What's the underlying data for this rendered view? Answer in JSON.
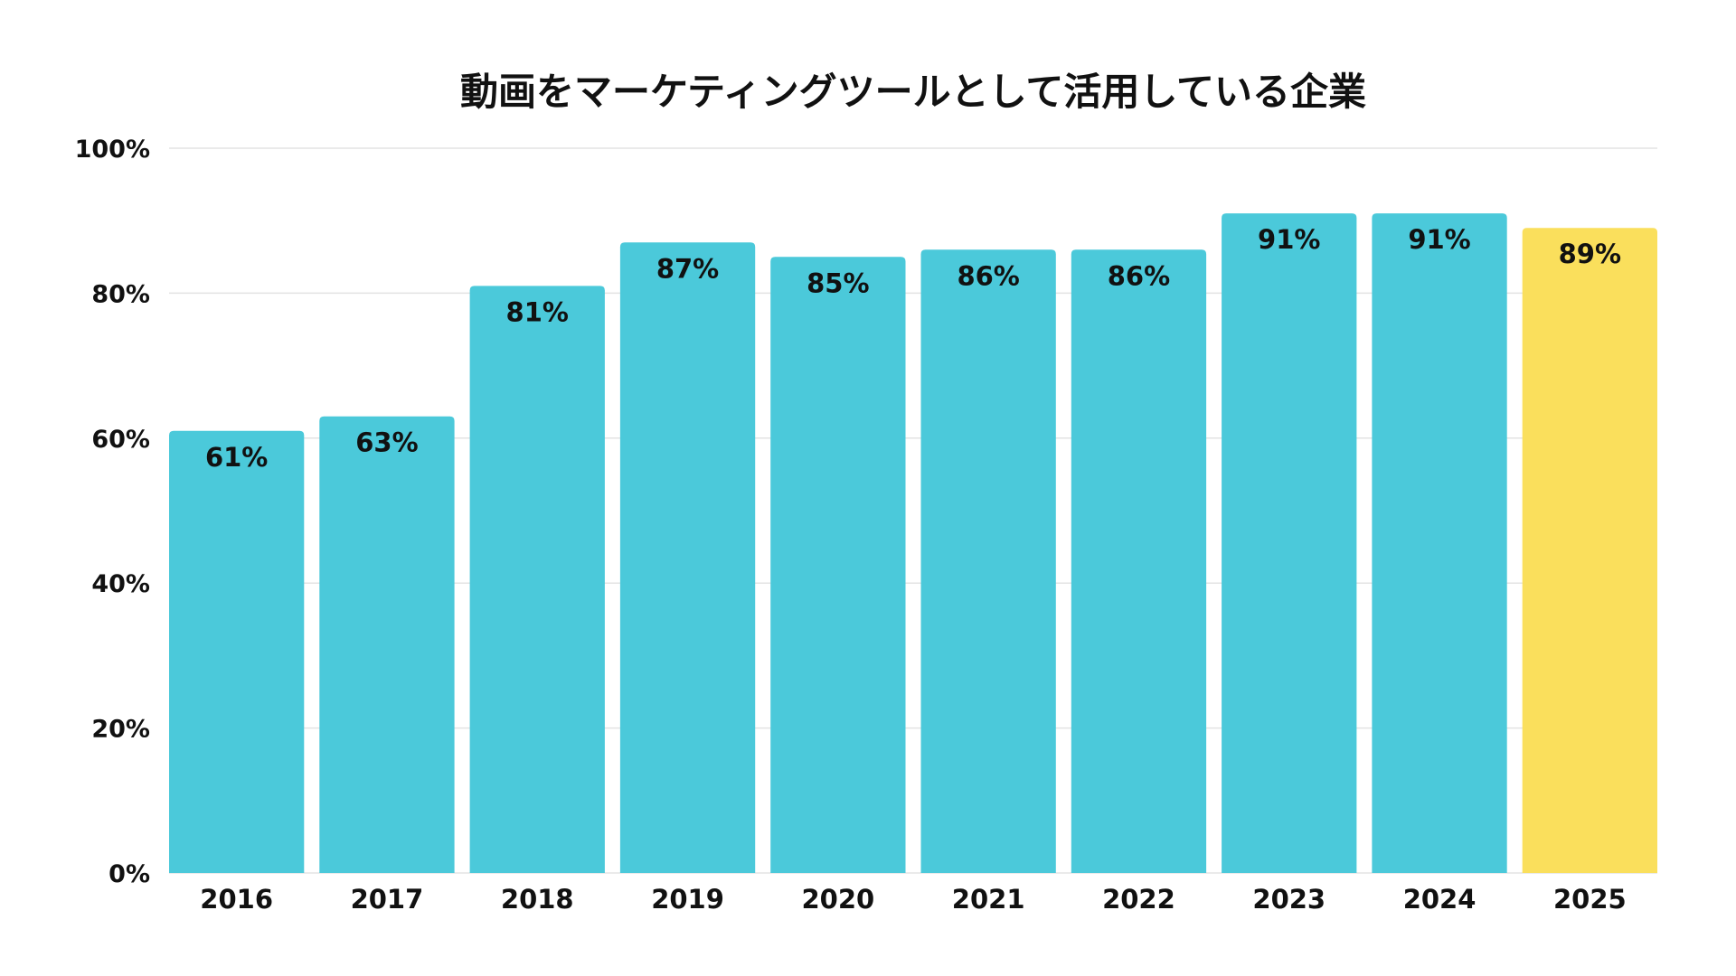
{
  "chart_data": {
    "type": "bar",
    "title": "動画をマーケティングツールとして活用している企業",
    "categories": [
      "2016",
      "2017",
      "2018",
      "2019",
      "2020",
      "2021",
      "2022",
      "2023",
      "2024",
      "2025"
    ],
    "values": [
      61,
      63,
      81,
      87,
      85,
      86,
      86,
      91,
      91,
      89
    ],
    "data_labels": [
      "61%",
      "63%",
      "81%",
      "87%",
      "85%",
      "86%",
      "86%",
      "91%",
      "91%",
      "89%"
    ],
    "ylim": [
      0,
      100
    ],
    "yticks": [
      "0%",
      "20%",
      "40%",
      "60%",
      "80%",
      "100%"
    ],
    "xlabel": "",
    "ylabel": "",
    "grid": true,
    "colors": {
      "bar": "#4BC9DA",
      "highlight": "#FADF5C",
      "highlight_category": "2025",
      "grid": "#e3e3e3"
    }
  }
}
